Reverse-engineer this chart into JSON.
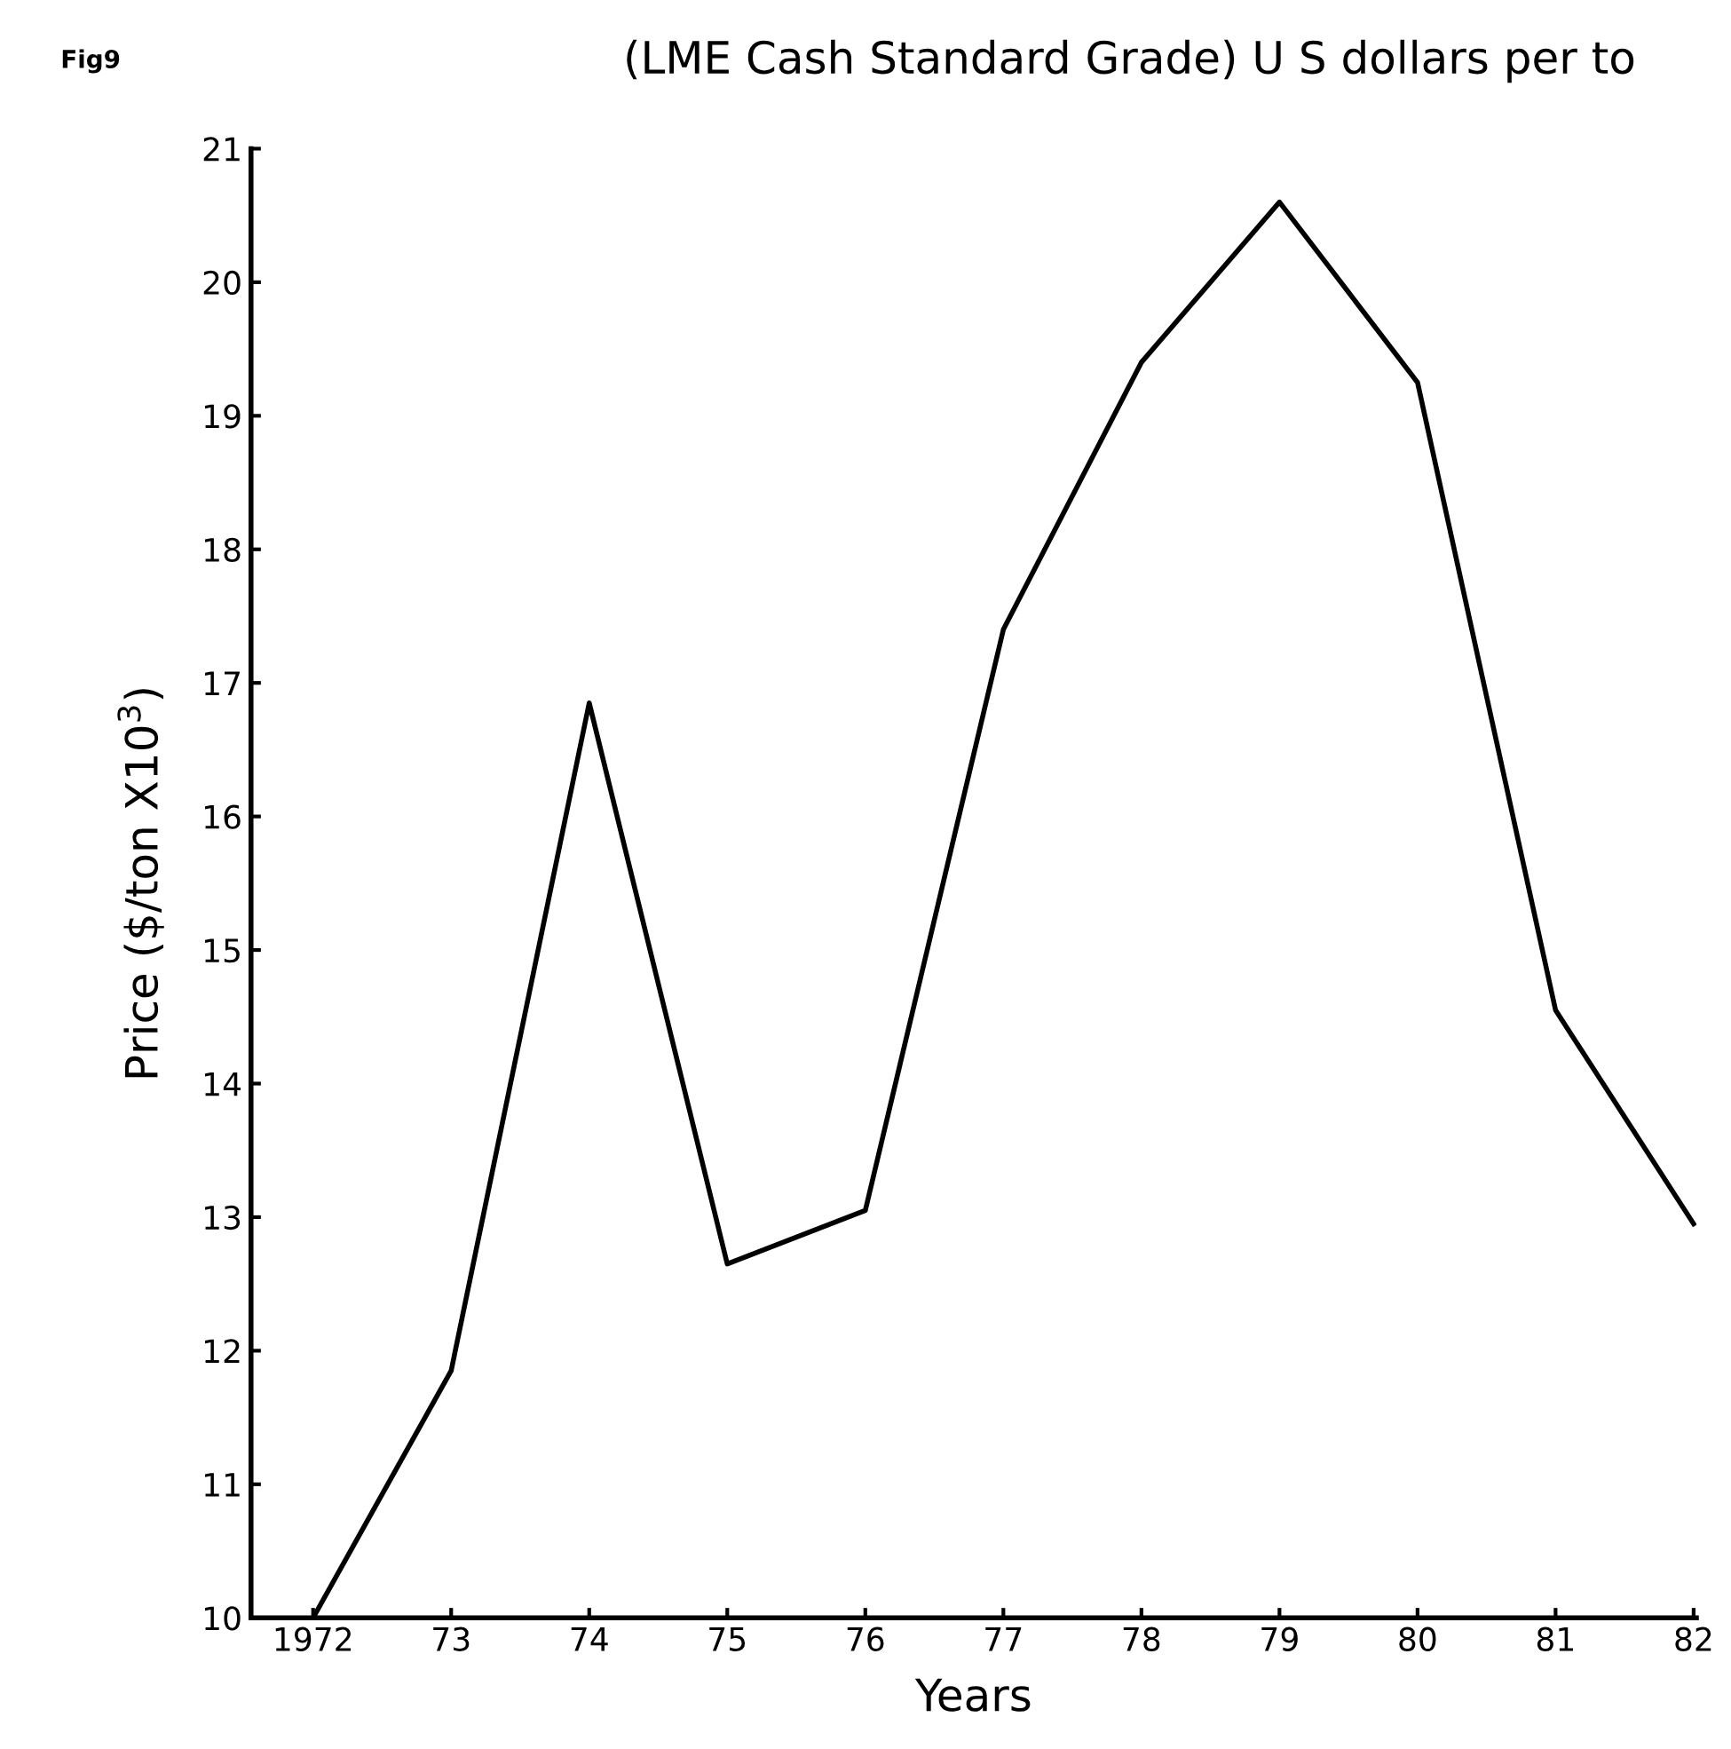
{
  "chart_data": {
    "type": "line",
    "title": "(LME Cash Standard Grade) U S dollars per to",
    "annotations": [
      "Fig9"
    ],
    "xlabel": "Years",
    "ylabel": "Price ($/ton X10$^{3}$)",
    "categories": [
      "1972",
      "73",
      "74",
      "75",
      "76",
      "77",
      "78",
      "79",
      "80",
      "81",
      "82"
    ],
    "series": [
      {
        "color": "#000000",
        "values": [
          10.0,
          11.85,
          16.85,
          12.65,
          13.05,
          17.4,
          19.4,
          20.6,
          19.25,
          14.55,
          12.95
        ]
      }
    ],
    "ylim": [
      10,
      21
    ],
    "yticks": [
      10,
      11,
      12,
      13,
      14,
      15,
      16,
      17,
      18,
      19,
      20,
      21
    ],
    "grid": false,
    "legend": false,
    "marker": "none",
    "line_style": "solid"
  }
}
